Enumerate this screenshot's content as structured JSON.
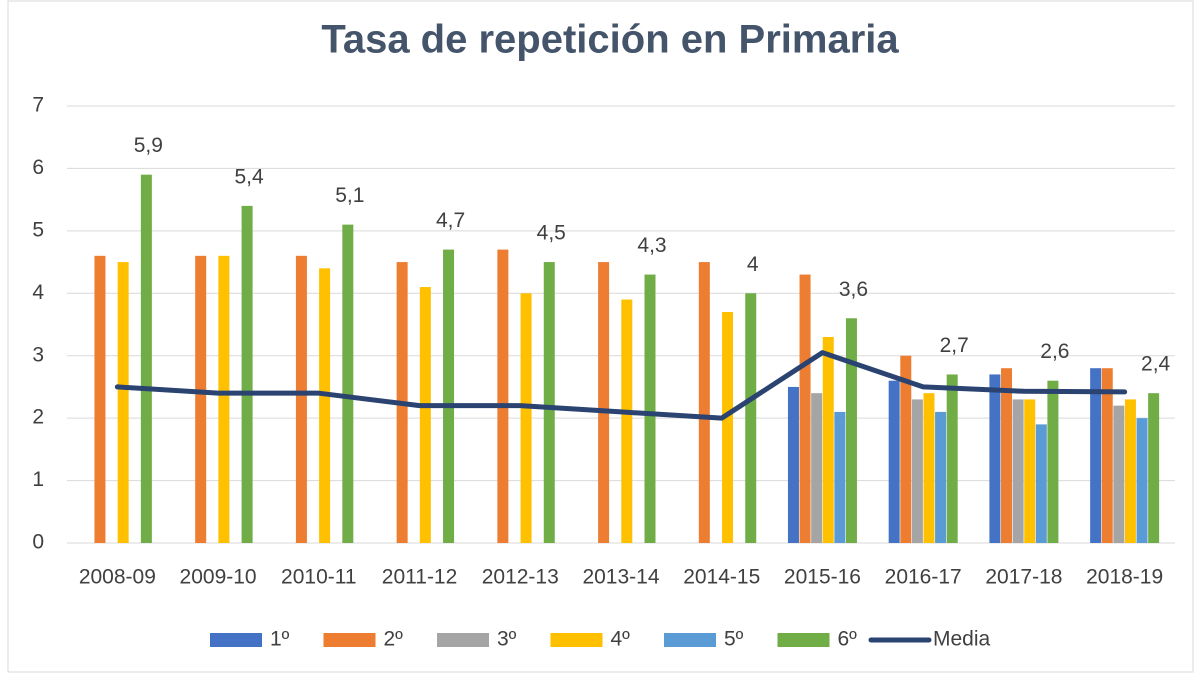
{
  "chart_data": {
    "type": "bar",
    "title": "Tasa de repetición en Primaria",
    "categories": [
      "2008-09",
      "2009-10",
      "2010-11",
      "2011-12",
      "2012-13",
      "2013-14",
      "2014-15",
      "2015-16",
      "2016-17",
      "2017-18",
      "2018-19"
    ],
    "series": [
      {
        "name": "1º",
        "color": "#4472c4",
        "values": [
          null,
          null,
          null,
          null,
          null,
          null,
          null,
          2.5,
          2.6,
          2.7,
          2.8
        ]
      },
      {
        "name": "2º",
        "color": "#ed7d31",
        "values": [
          4.6,
          4.6,
          4.6,
          4.5,
          4.7,
          4.5,
          4.5,
          4.3,
          3.0,
          2.8,
          2.8
        ]
      },
      {
        "name": "3º",
        "color": "#a5a5a5",
        "values": [
          null,
          null,
          null,
          null,
          null,
          null,
          null,
          2.4,
          2.3,
          2.3,
          2.2
        ]
      },
      {
        "name": "4º",
        "color": "#ffc000",
        "values": [
          4.5,
          4.6,
          4.4,
          4.1,
          4.0,
          3.9,
          3.7,
          3.3,
          2.4,
          2.3,
          2.3
        ]
      },
      {
        "name": "5º",
        "color": "#5b9bd5",
        "values": [
          null,
          null,
          null,
          null,
          null,
          null,
          null,
          2.1,
          2.1,
          1.9,
          2.0
        ]
      },
      {
        "name": "6º",
        "color": "#70ad47",
        "values": [
          5.9,
          5.4,
          5.1,
          4.7,
          4.5,
          4.3,
          4.0,
          3.6,
          2.7,
          2.6,
          2.4
        ],
        "value_labels": [
          "5,9",
          "5,4",
          "5,1",
          "4,7",
          "4,5",
          "4,3",
          "4",
          "3,6",
          "2,7",
          "2,6",
          "2,4"
        ]
      },
      {
        "name": "Media",
        "type": "line",
        "color": "#2a4370",
        "values": [
          2.5,
          2.4,
          2.4,
          2.2,
          2.2,
          2.1,
          2.0,
          3.05,
          2.5,
          2.43,
          2.42
        ]
      }
    ],
    "ylim": [
      0,
      7
    ],
    "yticks": [
      0,
      1,
      2,
      3,
      4,
      5,
      6,
      7
    ],
    "grid": true,
    "legend": "bottom"
  }
}
